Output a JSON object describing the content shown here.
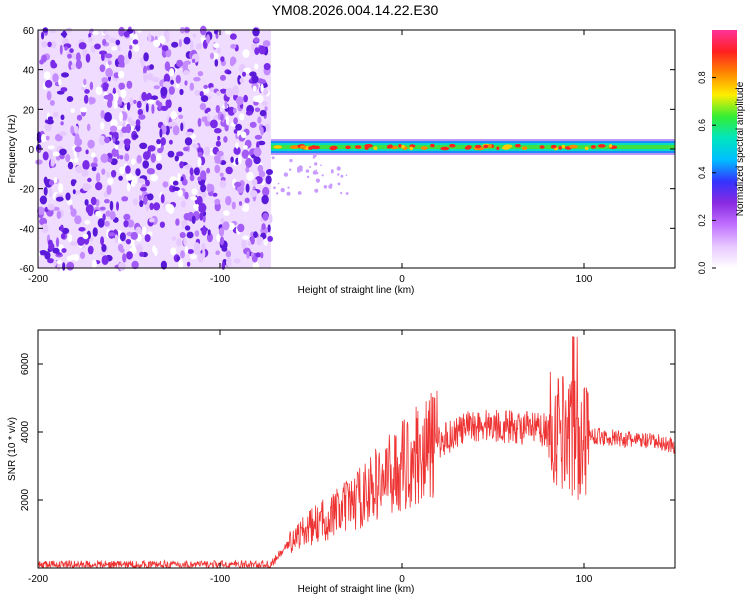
{
  "title": "YM08.2026.004.14.22.E30",
  "colors": {
    "snr_line": "#ee3333",
    "spectrogram_noise": "#7a2be8",
    "colormap": [
      "#ffffff",
      "#e8c8ff",
      "#c070ff",
      "#8a2be2",
      "#3333ff",
      "#00bfff",
      "#00e5c0",
      "#33ee33",
      "#ffee00",
      "#ff8800",
      "#ff2020",
      "#ff3399"
    ]
  },
  "chart_data": [
    {
      "type": "heatmap",
      "xlabel": "Height of straight line (km)",
      "ylabel": "Frequency (Hz)",
      "xlim": [
        -200,
        150
      ],
      "ylim": [
        -60,
        60
      ],
      "x_ticks": [
        -200,
        -100,
        0,
        100
      ],
      "y_ticks": [
        -60,
        -40,
        -20,
        0,
        20,
        40,
        60
      ],
      "colorbar": {
        "label": "Normalized spectral amplitude",
        "range": [
          0,
          1
        ],
        "ticks": [
          0.0,
          0.2,
          0.4,
          0.6,
          0.8
        ]
      },
      "features": {
        "noise_region_x": [
          -200,
          -72
        ],
        "signal_band_x": [
          -72,
          150
        ],
        "signal_band_frequency_hz": 1,
        "signal_band_halfwidth_hz": 3
      }
    },
    {
      "type": "line",
      "xlabel": "Height of straight line (km)",
      "ylabel": "SNR (10 * v/v)",
      "xlim": [
        -200,
        150
      ],
      "ylim": [
        0,
        7000
      ],
      "x_ticks": [
        -200,
        -100,
        0,
        100
      ],
      "y_ticks": [
        2000,
        4000,
        6000
      ],
      "series": [
        {
          "x": [
            -200,
            -150,
            -100,
            -72,
            -60,
            -50,
            -40,
            -30,
            -20,
            -10,
            0,
            10,
            20,
            30,
            40,
            50,
            60,
            70,
            80,
            85,
            90,
            95,
            98,
            100,
            105,
            110,
            120,
            130,
            140,
            150
          ],
          "values": [
            100,
            100,
            100,
            100,
            850,
            1200,
            1500,
            1800,
            2200,
            2600,
            3000,
            3400,
            3700,
            4000,
            4200,
            4200,
            4150,
            4100,
            4050,
            4000,
            4200,
            3800,
            3600,
            3900,
            3900,
            3850,
            3800,
            3750,
            3700,
            3600
          ]
        }
      ]
    }
  ]
}
